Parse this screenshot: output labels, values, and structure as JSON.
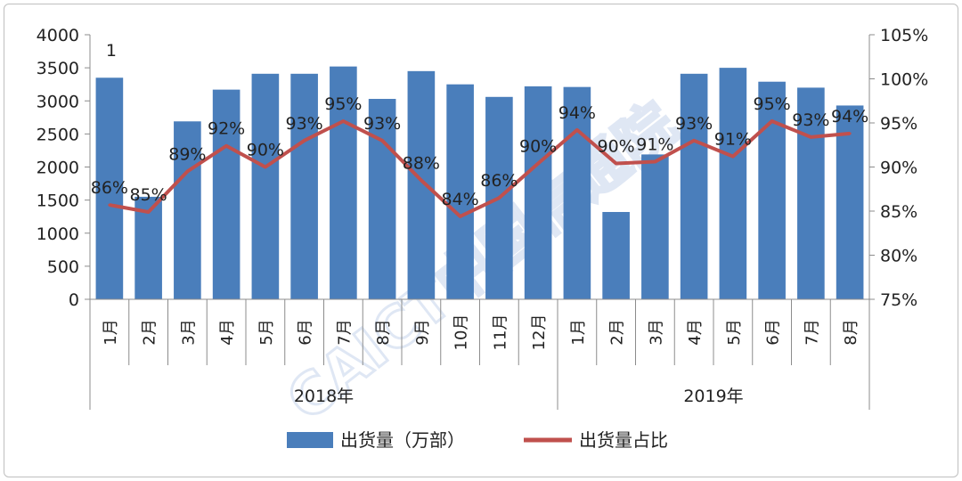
{
  "chart_data": {
    "type": "bar",
    "categories": [
      "1月",
      "2月",
      "3月",
      "4月",
      "5月",
      "6月",
      "7月",
      "8月",
      "9月",
      "10月",
      "11月",
      "12月",
      "1月",
      "2月",
      "3月",
      "4月",
      "5月",
      "6月",
      "7月",
      "8月"
    ],
    "years": [
      {
        "label": "2018年",
        "span": 12
      },
      {
        "label": "2019年",
        "span": 8
      }
    ],
    "series": [
      {
        "name": "出货量（万部）",
        "type": "bar",
        "axis": "left",
        "values": [
          3350,
          1550,
          2690,
          3170,
          3410,
          3410,
          3520,
          3030,
          3450,
          3250,
          3060,
          3220,
          3210,
          1320,
          2190,
          3410,
          3500,
          3290,
          3200,
          2930
        ]
      },
      {
        "name": "出货量占比",
        "type": "line",
        "axis": "right",
        "values": [
          85.7,
          84.9,
          89.5,
          92.4,
          90.0,
          93.0,
          95.2,
          93.0,
          88.5,
          84.4,
          86.5,
          90.4,
          94.2,
          90.4,
          90.6,
          93.0,
          91.2,
          95.2,
          93.4,
          93.8
        ],
        "labels": [
          "86%",
          "85%",
          "89%",
          "92%",
          "90%",
          "93%",
          "95%",
          "93%",
          "88%",
          "84%",
          "86%",
          "90%",
          "94%",
          "90%",
          "91%",
          "93%",
          "91%",
          "95%",
          "93%",
          "94%"
        ]
      }
    ],
    "y_left": {
      "min": 0,
      "max": 4000,
      "step": 500,
      "ticks": [
        "0",
        "500",
        "1000",
        "1500",
        "2000",
        "2500",
        "3000",
        "3500",
        "4000"
      ]
    },
    "y_right": {
      "min": 75,
      "max": 105,
      "step": 5,
      "ticks": [
        "75%",
        "80%",
        "85%",
        "90%",
        "95%",
        "100%",
        "105%"
      ]
    },
    "extra_label": "1",
    "legend_position": "bottom",
    "watermark": "CAICT中国信通院",
    "colors": {
      "bar": "#4a7ebb",
      "line": "#c0504d",
      "axis": "#8c8c8c",
      "text": "#222222",
      "watermark": "#8faad8"
    }
  }
}
